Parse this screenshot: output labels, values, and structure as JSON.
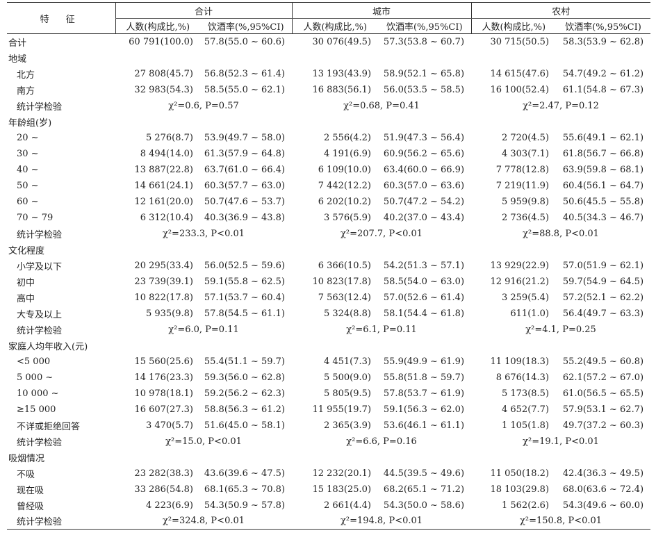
{
  "header": {
    "feature": "特 征",
    "groups": [
      "合计",
      "城市",
      "农村"
    ],
    "subcols": [
      "人数(构成比,%)",
      "饮酒率(%,95%CI)"
    ]
  },
  "rows": [
    {
      "type": "data",
      "level": 0,
      "label": "合计",
      "cells": [
        "60 791(100.0)",
        "57.8(55.0 ~ 60.6)",
        "30 076(49.5)",
        "57.3(53.8 ~ 60.7)",
        "30 715(50.5)",
        "58.3(53.9 ~ 62.8)"
      ]
    },
    {
      "type": "section",
      "label": "地域"
    },
    {
      "type": "data",
      "level": 1,
      "label": "北方",
      "cells": [
        "27 808(45.7)",
        "56.8(52.3 ~ 61.4)",
        "13 193(43.9)",
        "58.9(52.1 ~ 65.8)",
        "14 615(47.6)",
        "54.7(49.2 ~ 61.2)"
      ]
    },
    {
      "type": "data",
      "level": 1,
      "label": "南方",
      "cells": [
        "32 983(54.3)",
        "58.5(55.0 ~ 62.1)",
        "16 883(56.1)",
        "56.0(53.5 ~ 58.5)",
        "16 100(52.4)",
        "61.1(54.8 ~ 67.3)"
      ]
    },
    {
      "type": "stat",
      "label": "统计学检验",
      "stats": [
        "χ²=0.6, P=0.57",
        "χ²=0.68, P=0.41",
        "χ²=2.47, P=0.12"
      ]
    },
    {
      "type": "section",
      "label": "年龄组(岁)"
    },
    {
      "type": "data",
      "level": 1,
      "label": "20 ~",
      "cells": [
        "5 276(8.7)",
        "53.9(49.7 ~ 58.0)",
        "2 556(4.2)",
        "51.9(47.3 ~ 56.4)",
        "2 720(4.5)",
        "55.6(49.1 ~ 62.1)"
      ]
    },
    {
      "type": "data",
      "level": 1,
      "label": "30 ~",
      "cells": [
        "8 494(14.0)",
        "61.3(57.9 ~ 64.8)",
        "4 191(6.9)",
        "60.9(56.2 ~ 65.6)",
        "4 303(7.1)",
        "61.8(56.7 ~ 66.8)"
      ]
    },
    {
      "type": "data",
      "level": 1,
      "label": "40 ~",
      "cells": [
        "13 887(22.8)",
        "63.7(61.0 ~ 66.4)",
        "6 109(10.0)",
        "63.4(60.0 ~ 66.9)",
        "7 778(12.8)",
        "63.9(59.8 ~ 68.1)"
      ]
    },
    {
      "type": "data",
      "level": 1,
      "label": "50 ~",
      "cells": [
        "14 661(24.1)",
        "60.3(57.7 ~ 63.0)",
        "7 442(12.2)",
        "60.3(57.0 ~ 63.6)",
        "7 219(11.9)",
        "60.4(56.1 ~ 64.7)"
      ]
    },
    {
      "type": "data",
      "level": 1,
      "label": "60 ~",
      "cells": [
        "12 161(20.0)",
        "50.7(47.6 ~ 53.7)",
        "6 202(10.2)",
        "50.7(47.2 ~ 54.2)",
        "5 959(9.8)",
        "50.6(45.5 ~ 55.8)"
      ]
    },
    {
      "type": "data",
      "level": 1,
      "label": "70 ~ 79",
      "cells": [
        "6 312(10.4)",
        "40.3(36.9 ~ 43.8)",
        "3 576(5.9)",
        "40.2(37.0 ~ 43.4)",
        "2 736(4.5)",
        "40.5(34.3 ~ 46.7)"
      ]
    },
    {
      "type": "stat",
      "label": "统计学检验",
      "stats": [
        "χ²=233.3, P<0.01",
        "χ²=207.7, P<0.01",
        "χ²=88.8, P<0.01"
      ]
    },
    {
      "type": "section",
      "label": "文化程度"
    },
    {
      "type": "data",
      "level": 1,
      "label": "小学及以下",
      "cells": [
        "20 295(33.4)",
        "56.0(52.5 ~ 59.6)",
        "6 366(10.5)",
        "54.2(51.3 ~ 57.1)",
        "13 929(22.9)",
        "57.0(51.9 ~ 62.1)"
      ]
    },
    {
      "type": "data",
      "level": 1,
      "label": "初中",
      "cells": [
        "23 739(39.1)",
        "59.1(55.8 ~ 62.5)",
        "10 823(17.8)",
        "58.5(54.0 ~ 63.0)",
        "12 916(21.2)",
        "59.7(54.9 ~ 64.5)"
      ]
    },
    {
      "type": "data",
      "level": 1,
      "label": "高中",
      "cells": [
        "10 822(17.8)",
        "57.1(53.7 ~ 60.4)",
        "7 563(12.4)",
        "57.0(52.6 ~ 61.4)",
        "3 259(5.4)",
        "57.2(52.1 ~ 62.2)"
      ]
    },
    {
      "type": "data",
      "level": 1,
      "label": "大专及以上",
      "cells": [
        "5 935(9.8)",
        "57.8(54.5 ~ 61.1)",
        "5 324(8.8)",
        "58.1(54.4 ~ 61.8)",
        "611(1.0)",
        "56.4(49.7 ~ 63.3)"
      ]
    },
    {
      "type": "stat",
      "label": "统计学检验",
      "stats": [
        "χ²=6.0, P=0.11",
        "χ²=6.1, P=0.11",
        "χ²=4.1, P=0.25"
      ]
    },
    {
      "type": "section",
      "label": "家庭人均年收入(元)"
    },
    {
      "type": "data",
      "level": 1,
      "label": "<5 000",
      "cells": [
        "15 560(25.6)",
        "55.4(51.1 ~ 59.7)",
        "4 451(7.3)",
        "55.9(49.9 ~ 61.9)",
        "11 109(18.3)",
        "55.2(49.5 ~ 60.8)"
      ]
    },
    {
      "type": "data",
      "level": 1,
      "label": "5 000 ~",
      "cells": [
        "14 176(23.3)",
        "59.3(56.0 ~ 62.8)",
        "5 500(9.0)",
        "55.8(51.8 ~ 59.7)",
        "8 676(14.3)",
        "62.1(57.2 ~ 67.0)"
      ]
    },
    {
      "type": "data",
      "level": 1,
      "label": "10 000 ~",
      "cells": [
        "10 978(18.1)",
        "59.2(56.2 ~ 62.3)",
        "5 805(9.5)",
        "57.8(53.7 ~ 61.9)",
        "5 173(8.5)",
        "61.0(56.5 ~ 65.5)"
      ]
    },
    {
      "type": "data",
      "level": 1,
      "label": "≥15 000",
      "cells": [
        "16 607(27.3)",
        "58.8(56.3 ~ 61.2)",
        "11 955(19.7)",
        "59.1(56.3 ~ 62.0)",
        "4 652(7.7)",
        "57.9(53.1 ~ 62.7)"
      ]
    },
    {
      "type": "data",
      "level": 1,
      "label": "不详或拒绝回答",
      "cells": [
        "3 470(5.7)",
        "51.6(45.0 ~ 58.1)",
        "2 365(3.9)",
        "53.6(46.1 ~ 61.1)",
        "1 105(1.8)",
        "49.7(37.2 ~ 60.3)"
      ]
    },
    {
      "type": "stat",
      "label": "统计学检验",
      "stats": [
        "χ²=15.0, P<0.01",
        "χ²=6.6, P=0.16",
        "χ²=19.1, P<0.01"
      ]
    },
    {
      "type": "section",
      "label": "吸烟情况"
    },
    {
      "type": "data",
      "level": 1,
      "label": "不吸",
      "cells": [
        "23 282(38.3)",
        "43.6(39.6 ~ 47.5)",
        "12 232(20.1)",
        "44.5(39.5 ~ 49.6)",
        "11 050(18.2)",
        "42.4(36.3 ~ 49.5)"
      ]
    },
    {
      "type": "data",
      "level": 1,
      "label": "现在吸",
      "cells": [
        "33 286(54.8)",
        "68.1(65.3 ~ 70.8)",
        "15 183(25.0)",
        "68.2(65.1 ~ 71.2)",
        "18 103(29.8)",
        "68.0(63.6 ~ 72.4)"
      ]
    },
    {
      "type": "data",
      "level": 1,
      "label": "曾经吸",
      "cells": [
        "4 223(6.9)",
        "54.3(50.9 ~ 57.8)",
        "2 661(4.4)",
        "54.3(50.0 ~ 58.6)",
        "1 562(2.6)",
        "54.3(49.6 ~ 60.0)"
      ]
    },
    {
      "type": "stat",
      "label": "统计学检验",
      "stats": [
        "χ²=324.8, P<0.01",
        "χ²=194.8, P<0.01",
        "χ²=150.8, P<0.01"
      ]
    }
  ]
}
